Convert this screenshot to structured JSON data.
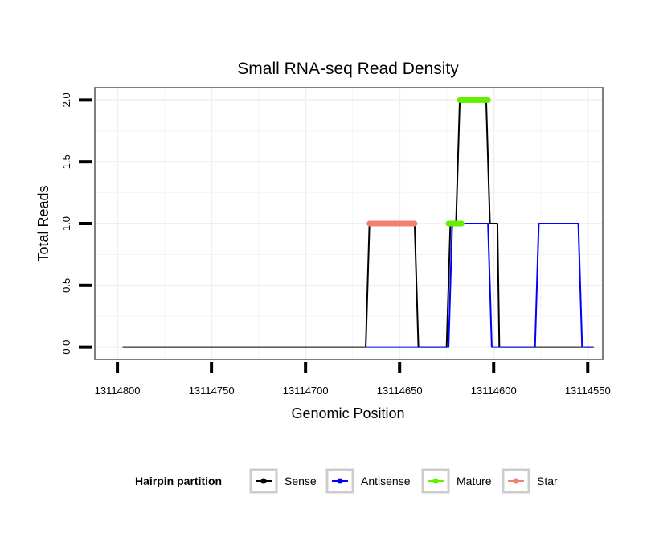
{
  "chart_data": {
    "type": "line",
    "title": "Small RNA-seq Read Density",
    "xlabel": "Genomic Position",
    "ylabel": "Total Reads",
    "x_reversed": true,
    "xlim": [
      13114812,
      13114542
    ],
    "ylim": [
      -0.1,
      2.1
    ],
    "x_ticks": [
      13114800,
      13114750,
      13114700,
      13114650,
      13114600,
      13114550
    ],
    "x_tick_labels": [
      "13114800",
      "13114750",
      "13114700",
      "13114650",
      "13114600",
      "13114550"
    ],
    "y_ticks": [
      0,
      0.5,
      1,
      1.5,
      2
    ],
    "y_tick_labels": [
      "0.0",
      "0.5",
      "1.0",
      "1.5",
      "2.0"
    ],
    "legend": {
      "title": "Hairpin partition",
      "position": "bottom",
      "items": [
        {
          "label": "Sense",
          "color": "#000000"
        },
        {
          "label": "Antisense",
          "color": "#0000ff"
        },
        {
          "label": "Mature",
          "color": "#66ee00"
        },
        {
          "label": "Star",
          "color": "#f08070"
        }
      ]
    },
    "series": [
      {
        "name": "Sense",
        "color": "#000000",
        "width": 2,
        "points": [
          [
            13114797,
            0
          ],
          [
            13114668,
            0
          ],
          [
            13114666,
            1
          ],
          [
            13114642,
            1
          ],
          [
            13114640,
            0
          ],
          [
            13114625,
            0
          ],
          [
            13114623,
            1
          ],
          [
            13114620,
            1
          ],
          [
            13114618,
            2
          ],
          [
            13114604,
            2
          ],
          [
            13114602,
            1
          ],
          [
            13114598,
            1
          ],
          [
            13114597,
            0
          ],
          [
            13114547,
            0
          ]
        ]
      },
      {
        "name": "Antisense",
        "color": "#0000ff",
        "width": 2,
        "points": [
          [
            13114668,
            0
          ],
          [
            13114624,
            0
          ],
          [
            13114622,
            1
          ],
          [
            13114603,
            1
          ],
          [
            13114601,
            0
          ],
          [
            13114578,
            0
          ],
          [
            13114576,
            1
          ],
          [
            13114555,
            1
          ],
          [
            13114553,
            0
          ],
          [
            13114548,
            0
          ]
        ]
      },
      {
        "name": "Mature",
        "color": "#66ee00",
        "width": 7,
        "points": [
          [
            13114618,
            2
          ],
          [
            13114603,
            2
          ]
        ],
        "points2": [
          [
            13114624,
            1
          ],
          [
            13114617,
            1
          ]
        ]
      },
      {
        "name": "Star",
        "color": "#f08070",
        "width": 7,
        "points": [
          [
            13114666,
            1
          ],
          [
            13114642,
            1
          ]
        ]
      }
    ]
  }
}
